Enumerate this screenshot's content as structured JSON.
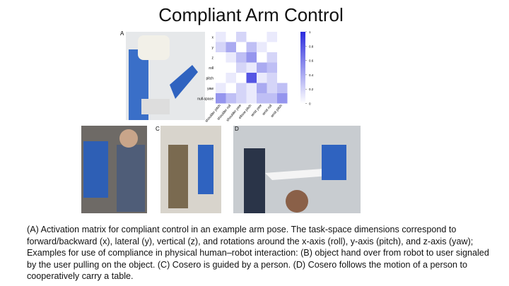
{
  "title": "Compliant Arm Control",
  "figure": {
    "panel_labels": [
      "A",
      "B",
      "C",
      "D"
    ],
    "heatmap": {
      "rows": [
        "x",
        "y",
        "z",
        "roll",
        "pitch",
        "yaw",
        "null-space"
      ],
      "columns": [
        "shoulder pitch",
        "shoulder roll",
        "shoulder yaw",
        "elbow pitch",
        "wrist yaw",
        "wrist roll",
        "wrist pitch"
      ],
      "values": [
        [
          0.1,
          0,
          0.2,
          0,
          0,
          0.1,
          0
        ],
        [
          0.2,
          0.4,
          0,
          0.3,
          0.1,
          0,
          0
        ],
        [
          0,
          0.1,
          0.3,
          0.5,
          0,
          0.2,
          0
        ],
        [
          0,
          0,
          0.2,
          0.1,
          0.4,
          0.3,
          0
        ],
        [
          0,
          0.1,
          0,
          0.8,
          0.1,
          0.2,
          0
        ],
        [
          0.1,
          0,
          0.2,
          0.1,
          0.4,
          0.2,
          0.3
        ],
        [
          0.5,
          0.3,
          0.2,
          0.1,
          0.3,
          0.3,
          0.5
        ]
      ],
      "colorbar_lim": [
        0,
        1
      ],
      "colorbar_ticks": [
        0,
        0.2,
        0.4,
        0.6,
        0.8,
        1
      ],
      "color": "#2b2bdd"
    }
  },
  "caption": "(A) Activation matrix for compliant control in an example arm pose. The task-space dimensions correspond to forward/backward (x), lateral (y), vertical (z), and rotations around the x-axis (roll), y-axis (pitch), and z-axis (yaw); Examples for use of compliance in physical human–robot interaction: (B) object hand over from robot to user signaled by the user pulling on the object. (C) Cosero is guided by a person. (D) Cosero follows the motion of a person to cooperatively carry a table."
}
